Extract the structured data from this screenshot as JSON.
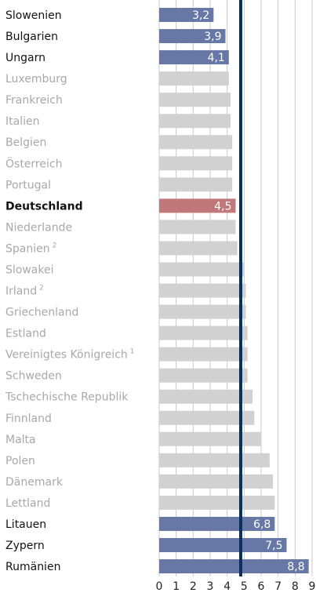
{
  "chart_data": {
    "type": "barh",
    "categories": [
      "Slowenien",
      "Bulgarien",
      "Ungarn",
      "Luxemburg",
      "Frankreich",
      "Italien",
      "Belgien",
      "Österreich",
      "Portugal",
      "Deutschland",
      "Niederlande",
      "Spanien",
      "Slowakei",
      "Irland",
      "Griechenland",
      "Estland",
      "Vereinigtes Königreich",
      "Schweden",
      "Tschechische Republik",
      "Finnland",
      "Malta",
      "Polen",
      "Dänemark",
      "Lettland",
      "Litauen",
      "Zypern",
      "Rumänien"
    ],
    "category_notes": [
      null,
      null,
      null,
      null,
      null,
      null,
      null,
      null,
      null,
      null,
      null,
      "2",
      null,
      "2",
      null,
      null,
      "1",
      null,
      null,
      null,
      null,
      null,
      null,
      null,
      null,
      null,
      null
    ],
    "values": [
      3.2,
      3.9,
      4.1,
      4.1,
      4.2,
      4.2,
      4.3,
      4.3,
      4.3,
      4.5,
      4.5,
      4.6,
      5.0,
      5.1,
      5.1,
      5.2,
      5.2,
      5.2,
      5.5,
      5.6,
      6.0,
      6.5,
      6.7,
      6.8,
      6.8,
      7.5,
      8.8
    ],
    "value_labels": [
      "3,2",
      "3,9",
      "4,1",
      null,
      null,
      null,
      null,
      null,
      null,
      "4,5",
      null,
      null,
      null,
      null,
      null,
      null,
      null,
      null,
      null,
      null,
      null,
      null,
      null,
      null,
      "6,8",
      "7,5",
      "8,8"
    ],
    "colors": [
      "#6878a6",
      "#6878a6",
      "#6878a6",
      "#d1d1d1",
      "#d1d1d1",
      "#d1d1d1",
      "#d1d1d1",
      "#d1d1d1",
      "#d1d1d1",
      "#c0787b",
      "#d1d1d1",
      "#d1d1d1",
      "#d1d1d1",
      "#d1d1d1",
      "#d1d1d1",
      "#d1d1d1",
      "#d1d1d1",
      "#d1d1d1",
      "#d1d1d1",
      "#d1d1d1",
      "#d1d1d1",
      "#d1d1d1",
      "#d1d1d1",
      "#d1d1d1",
      "#6878a6",
      "#6878a6",
      "#6878a6"
    ],
    "reference_line": 4.8,
    "reference_color": "#0b2f5e",
    "xlim": [
      0,
      9
    ],
    "xticks": [
      0,
      1,
      2,
      3,
      4,
      5,
      6,
      7,
      8,
      9
    ],
    "grid": true
  }
}
